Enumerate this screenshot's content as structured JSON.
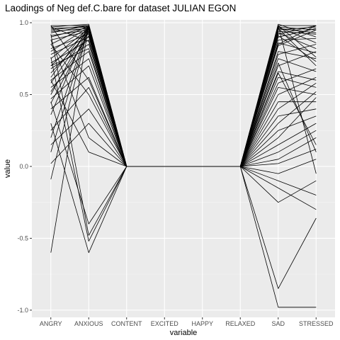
{
  "chart_data": {
    "type": "line",
    "title": "Laodings of Neg def.C.bare for dataset JULIAN EGON",
    "xlabel": "variable",
    "ylabel": "value",
    "categories": [
      "ANGRY",
      "ANXIOUS",
      "CONTENT",
      "EXCITED",
      "HAPPY",
      "RELAXED",
      "SAD",
      "STRESSED"
    ],
    "yticks": [
      -1.0,
      -0.5,
      0.0,
      0.5,
      1.0
    ],
    "ytick_labels": [
      "-1.0",
      "-0.5",
      "0.0",
      "0.5",
      "1.0"
    ],
    "ylim": [
      -1.05,
      1.02
    ],
    "grid": true,
    "legend": "none",
    "colors": {
      "panel": "#ebebeb",
      "grid_major": "#ffffff",
      "grid_minor": "#f5f5f5",
      "line": "#000000"
    },
    "series": [
      {
        "values": [
          0.98,
          0.98,
          0,
          0,
          0,
          0,
          0.98,
          0.98
        ]
      },
      {
        "values": [
          0.97,
          0.99,
          0,
          0,
          0,
          0,
          0.97,
          0.95
        ]
      },
      {
        "values": [
          0.96,
          0.97,
          0,
          0,
          0,
          0,
          0.95,
          0.97
        ]
      },
      {
        "values": [
          0.95,
          0.98,
          0,
          0,
          0,
          0,
          0.99,
          0.9
        ]
      },
      {
        "values": [
          0.94,
          0.96,
          0,
          0,
          0,
          0,
          0.96,
          0.93
        ]
      },
      {
        "values": [
          0.93,
          0.98,
          0,
          0,
          0,
          0,
          0.92,
          0.98
        ]
      },
      {
        "values": [
          0.91,
          0.95,
          0,
          0,
          0,
          0,
          0.97,
          0.86
        ]
      },
      {
        "values": [
          0.9,
          0.97,
          0,
          0,
          0,
          0,
          0.94,
          0.92
        ]
      },
      {
        "values": [
          0.88,
          0.94,
          0,
          0,
          0,
          0,
          0.9,
          0.96
        ]
      },
      {
        "values": [
          0.85,
          0.98,
          0,
          0,
          0,
          0,
          0.93,
          0.82
        ]
      },
      {
        "values": [
          0.82,
          0.92,
          0,
          0,
          0,
          0,
          0.88,
          0.89
        ]
      },
      {
        "values": [
          0.8,
          0.97,
          0,
          0,
          0,
          0,
          0.86,
          0.79
        ]
      },
      {
        "values": [
          0.78,
          0.9,
          0,
          0,
          0,
          0,
          0.84,
          0.95
        ]
      },
      {
        "values": [
          0.75,
          0.96,
          0,
          0,
          0,
          0,
          0.8,
          0.75
        ]
      },
      {
        "values": [
          0.72,
          0.88,
          0,
          0,
          0,
          0,
          0.96,
          0.7
        ]
      },
      {
        "values": [
          0.7,
          0.95,
          0,
          0,
          0,
          0,
          0.78,
          0.85
        ]
      },
      {
        "values": [
          0.68,
          0.85,
          0,
          0,
          0,
          0,
          0.75,
          0.66
        ]
      },
      {
        "values": [
          0.65,
          0.93,
          0,
          0,
          0,
          0,
          0.7,
          0.8
        ]
      },
      {
        "values": [
          0.62,
          0.98,
          0,
          0,
          0,
          0,
          0.66,
          0.6
        ]
      },
      {
        "values": [
          0.6,
          0.8,
          0,
          0,
          0,
          0,
          0.91,
          0.73
        ]
      },
      {
        "values": [
          0.58,
          0.96,
          0,
          0,
          0,
          0,
          0.62,
          0.55
        ]
      },
      {
        "values": [
          0.55,
          0.75,
          0,
          0,
          0,
          0,
          0.58,
          0.68
        ]
      },
      {
        "values": [
          0.52,
          0.91,
          0,
          0,
          0,
          0,
          0.55,
          0.5
        ]
      },
      {
        "values": [
          0.5,
          0.98,
          0,
          0,
          0,
          0,
          0.5,
          0.62
        ]
      },
      {
        "values": [
          0.47,
          0.7,
          0,
          0,
          0,
          0,
          0.45,
          0.45
        ]
      },
      {
        "values": [
          0.44,
          0.94,
          0,
          0,
          0,
          0,
          0.4,
          0.58
        ]
      },
      {
        "values": [
          0.4,
          0.62,
          0,
          0,
          0,
          0,
          0.35,
          0.4
        ]
      },
      {
        "values": [
          0.36,
          0.98,
          0,
          0,
          0,
          0,
          0.3,
          0.52
        ]
      },
      {
        "values": [
          0.25,
          0.55,
          0,
          0,
          0,
          0,
          0.25,
          0.35
        ]
      },
      {
        "values": [
          0.2,
          0.98,
          0,
          0,
          0,
          0,
          0.2,
          0.48
        ]
      },
      {
        "values": [
          0.15,
          0.4,
          0,
          0,
          0,
          0,
          0.15,
          0.3
        ]
      },
      {
        "values": [
          0.1,
          0.97,
          0,
          0,
          0,
          0,
          0.1,
          0.25
        ]
      },
      {
        "values": [
          0.02,
          0.3,
          0,
          0,
          0,
          0,
          0.05,
          0.2
        ]
      },
      {
        "values": [
          -0.09,
          0.98,
          0,
          0,
          0,
          0,
          0.02,
          0.12
        ]
      },
      {
        "values": [
          0.6,
          0.1,
          0,
          0,
          0,
          0,
          -0.05,
          0.05
        ]
      },
      {
        "values": [
          0.88,
          0.2,
          0,
          0,
          0,
          0,
          -0.1,
          -0.2
        ]
      },
      {
        "values": [
          0.45,
          -0.4,
          0,
          0,
          0,
          0,
          -0.15,
          -0.3
        ]
      },
      {
        "values": [
          0.92,
          -0.48,
          0,
          0,
          0,
          0,
          -0.25,
          -0.1
        ]
      },
      {
        "values": [
          0.76,
          -0.52,
          0,
          0,
          0,
          0,
          -0.85,
          -0.36
        ]
      },
      {
        "values": [
          -0.6,
          0.98,
          0,
          0,
          0,
          0,
          -0.98,
          -0.98
        ]
      },
      {
        "values": [
          0.3,
          -0.6,
          0,
          0,
          0,
          0,
          0.98,
          -0.05
        ]
      },
      {
        "values": [
          0.98,
          0.6,
          0,
          0,
          0,
          0,
          0.72,
          0.1
        ]
      },
      {
        "values": [
          0.85,
          0.5,
          0,
          0,
          0,
          0,
          0.85,
          0.98
        ]
      },
      {
        "values": [
          0.7,
          0.82,
          0,
          0,
          0,
          0,
          0.65,
          0.15
        ]
      },
      {
        "values": [
          0.97,
          0.87,
          0,
          0,
          0,
          0,
          0.98,
          0.76
        ]
      }
    ]
  }
}
